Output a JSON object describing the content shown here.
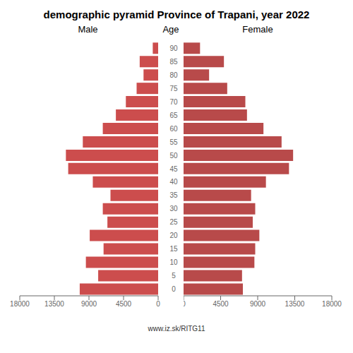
{
  "chart_data": {
    "type": "bar",
    "orientation": "horizontal",
    "title": "demographic pyramid Province of Trapani, year 2022",
    "ylabel": "Age",
    "annotations": [
      "www.iz.sk/RITG11"
    ],
    "categories": [
      "0",
      "5",
      "10",
      "15",
      "20",
      "25",
      "30",
      "35",
      "40",
      "45",
      "50",
      "55",
      "60",
      "65",
      "70",
      "75",
      "80",
      "85",
      "90"
    ],
    "series": [
      {
        "name": "Male",
        "color": "#cc4d4d",
        "values": [
          10200,
          7800,
          9400,
          7100,
          8900,
          6600,
          7200,
          6200,
          8500,
          11700,
          12000,
          9800,
          7200,
          5500,
          4200,
          2800,
          1900,
          2400,
          700
        ]
      },
      {
        "name": "Female",
        "color": "#b84a4a",
        "values": [
          7200,
          7100,
          8600,
          8700,
          9200,
          8400,
          8700,
          8200,
          10000,
          12800,
          13300,
          11900,
          9700,
          7700,
          7500,
          5300,
          3100,
          4900,
          2000
        ]
      }
    ],
    "xlim": [
      0,
      18000
    ],
    "xticks": [
      0,
      4500,
      9000,
      13500,
      18000
    ],
    "grid": false
  }
}
